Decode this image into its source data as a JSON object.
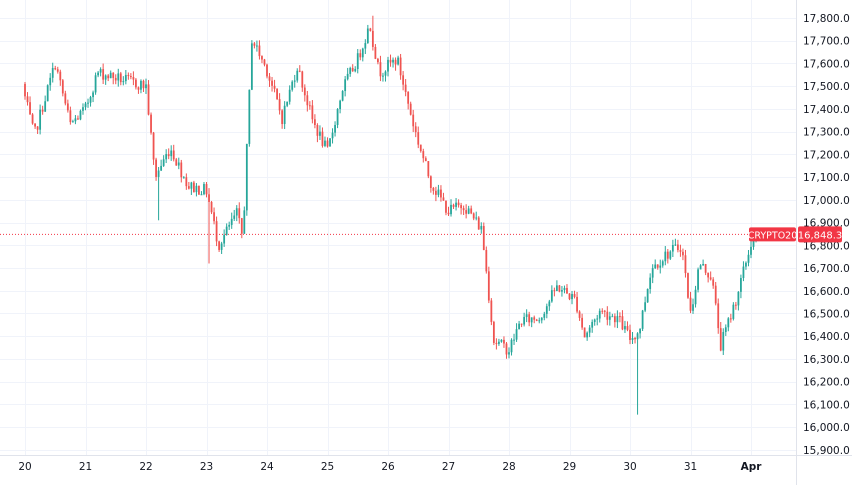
{
  "chart_data": {
    "type": "candlestick",
    "title": "",
    "xlabel": "",
    "ylabel": "",
    "ylim": [
      15850,
      17850
    ],
    "y_ticks": [
      15900,
      16000,
      16100,
      16200,
      16300,
      16400,
      16500,
      16600,
      16700,
      16800,
      16900,
      17000,
      17100,
      17200,
      17300,
      17400,
      17500,
      17600,
      17700,
      17800
    ],
    "y_tick_labels": [
      "15,900.0",
      "16,000.0",
      "16,100.0",
      "16,200.0",
      "16,300.0",
      "16,400.0",
      "16,500.0",
      "16,600.0",
      "16,700.0",
      "16,800.0",
      "16,900.0",
      "17,000.0",
      "17,100.0",
      "17,200.0",
      "17,300.0",
      "17,400.0",
      "17,500.0",
      "17,600.0",
      "17,700.0",
      "17,800.0"
    ],
    "x_ticks": [
      "20",
      "21",
      "22",
      "23",
      "24",
      "25",
      "26",
      "27",
      "28",
      "29",
      "30",
      "31",
      "Apr"
    ],
    "x_tick_bold": "Apr",
    "grid": true,
    "last_price": {
      "symbol": "CRYPTO20",
      "value": 16848.3,
      "label": "16,848.3"
    },
    "colors": {
      "up": "#26a69a",
      "down": "#ef5350",
      "grid": "#f0f3fa",
      "text": "#131722",
      "last_price": "#f23645"
    },
    "path": [
      [
        20.0,
        17450
      ],
      [
        20.15,
        17280
      ],
      [
        20.3,
        17420
      ],
      [
        20.5,
        17600
      ],
      [
        20.75,
        17330
      ],
      [
        21.0,
        17400
      ],
      [
        21.2,
        17560
      ],
      [
        21.6,
        17530
      ],
      [
        22.0,
        17500
      ],
      [
        22.15,
        17100
      ],
      [
        22.4,
        17230
      ],
      [
        22.7,
        17060
      ],
      [
        23.0,
        17040
      ],
      [
        23.2,
        16800
      ],
      [
        23.5,
        16940
      ],
      [
        23.6,
        16830
      ],
      [
        23.75,
        17710
      ],
      [
        24.0,
        17570
      ],
      [
        24.25,
        17360
      ],
      [
        24.5,
        17590
      ],
      [
        24.75,
        17350
      ],
      [
        25.0,
        17210
      ],
      [
        25.25,
        17490
      ],
      [
        25.5,
        17620
      ],
      [
        25.7,
        17770
      ],
      [
        25.85,
        17560
      ],
      [
        26.15,
        17620
      ],
      [
        26.45,
        17300
      ],
      [
        26.7,
        17080
      ],
      [
        27.0,
        16950
      ],
      [
        27.25,
        16980
      ],
      [
        27.55,
        16870
      ],
      [
        27.75,
        16380
      ],
      [
        28.0,
        16340
      ],
      [
        28.2,
        16470
      ],
      [
        28.5,
        16480
      ],
      [
        28.8,
        16620
      ],
      [
        29.1,
        16560
      ],
      [
        29.25,
        16400
      ],
      [
        29.5,
        16510
      ],
      [
        29.8,
        16480
      ],
      [
        30.0,
        16390
      ],
      [
        30.15,
        16420
      ],
      [
        30.35,
        16700
      ],
      [
        30.6,
        16760
      ],
      [
        30.85,
        16800
      ],
      [
        31.0,
        16500
      ],
      [
        31.15,
        16720
      ],
      [
        31.35,
        16660
      ],
      [
        31.5,
        16360
      ],
      [
        31.75,
        16560
      ],
      [
        32.0,
        16808
      ],
      [
        32.15,
        16848
      ]
    ],
    "extreme_wicks": [
      {
        "day": 25.75,
        "high": 17810
      },
      {
        "day": 30.14,
        "low": 16055
      },
      {
        "day": 22.2,
        "low": 16910
      },
      {
        "day": 23.05,
        "low": 16720
      }
    ]
  }
}
